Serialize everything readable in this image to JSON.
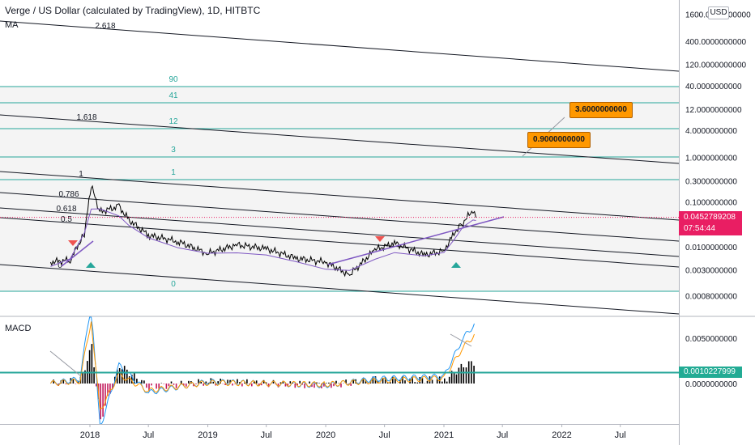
{
  "header": {
    "title": "Verge / US Dollar (calculated by TradingView), 1D, HITBTC",
    "indicator": "MA",
    "currency_button": "USD"
  },
  "macd_label": "MACD",
  "price_badge": {
    "value": "0.0452789208",
    "countdown": "07:54:44",
    "color": "#e91e63"
  },
  "macd_badge": {
    "value": "0.0010227999",
    "color": "#22ab94"
  },
  "callouts": [
    {
      "text": "3.6000000000"
    },
    {
      "text": "0.9000000000"
    }
  ],
  "price_axis": {
    "ticks": [
      {
        "label": "1600.0000000000",
        "value": 1600
      },
      {
        "label": "400.0000000000",
        "value": 400
      },
      {
        "label": "120.0000000000",
        "value": 120
      },
      {
        "label": "40.0000000000",
        "value": 40
      },
      {
        "label": "12.0000000000",
        "value": 12
      },
      {
        "label": "4.0000000000",
        "value": 4
      },
      {
        "label": "1.0000000000",
        "value": 1
      },
      {
        "label": "0.3000000000",
        "value": 0.3
      },
      {
        "label": "0.1000000000",
        "value": 0.1
      },
      {
        "label": "0.0100000000",
        "value": 0.01
      },
      {
        "label": "0.0030000000",
        "value": 0.003
      },
      {
        "label": "0.0008000000",
        "value": 0.0008
      }
    ]
  },
  "macd_axis": {
    "ticks": [
      {
        "label": "0.0050000000",
        "value": 0.005
      },
      {
        "label": "0.0000000000",
        "value": 0
      }
    ]
  },
  "time_axis": {
    "ticks": [
      "2018",
      "Jul",
      "2019",
      "Jul",
      "2020",
      "Jul",
      "2021",
      "Jul",
      "2022",
      "Jul"
    ]
  },
  "fib_channel_labels": [
    "2.618",
    "1.618",
    "1",
    "0.786",
    "0.618",
    "0.5",
    "0"
  ],
  "fib_level_labels": [
    "90",
    "41",
    "12",
    "3",
    "1",
    "0"
  ],
  "colors": {
    "fib_lines": "#26a69a",
    "channel_lines": "#131722",
    "ma_line": "#7e57c2",
    "trendline": "#7e57c2",
    "macd_line": "#2196f3",
    "signal_line": "#ff9800",
    "hist_up": "#000000",
    "hist_down": "#c2185b",
    "arrow_down": "#ef5350",
    "arrow_up": "#26a69a"
  },
  "chart_data": [
    {
      "type": "line",
      "title": "Verge / US Dollar (calculated by TradingView), 1D, HITBTC",
      "scale": "log",
      "ylim": [
        0.0006,
        1700
      ],
      "grid": true,
      "x": [
        "2017-09",
        "2017-11",
        "2017-12-15",
        "2018-01-05",
        "2018-02",
        "2018-04",
        "2018-05",
        "2018-07",
        "2018-10",
        "2019-01",
        "2019-04",
        "2019-07",
        "2019-10",
        "2020-01",
        "2020-03-15",
        "2020-06",
        "2020-08",
        "2020-11",
        "2021-01",
        "2021-02",
        "2021-03",
        "2021-04",
        "2021-04-10"
      ],
      "series": [
        {
          "values": [
            0.0045,
            0.005,
            0.02,
            0.23,
            0.06,
            0.08,
            0.04,
            0.018,
            0.013,
            0.007,
            0.011,
            0.009,
            0.0055,
            0.0045,
            0.0023,
            0.0085,
            0.012,
            0.0065,
            0.008,
            0.02,
            0.035,
            0.065,
            0.0452789208
          ]
        }
      ]
    },
    {
      "type": "line",
      "title": "MACD",
      "ylim": [
        -0.004,
        0.008
      ],
      "x": [
        "2017-09",
        "2017-12",
        "2018-01-05",
        "2018-02",
        "2018-04",
        "2018-07",
        "2019-01",
        "2020-01",
        "2020-06",
        "2021-01",
        "2021-03",
        "2021-04-10"
      ],
      "series": [
        {
          "values": [
            0,
            0.0005,
            0.009,
            -0.005,
            0.002,
            -0.001,
            0.0002,
            -0.0002,
            0.0005,
            0.0008,
            0.005,
            0.0067
          ]
        },
        {
          "values": [
            0,
            0.0003,
            0.007,
            -0.003,
            0.001,
            -0.0008,
            0.0001,
            -0.0001,
            0.0003,
            0.0006,
            0.004,
            0.0055
          ]
        }
      ]
    }
  ]
}
